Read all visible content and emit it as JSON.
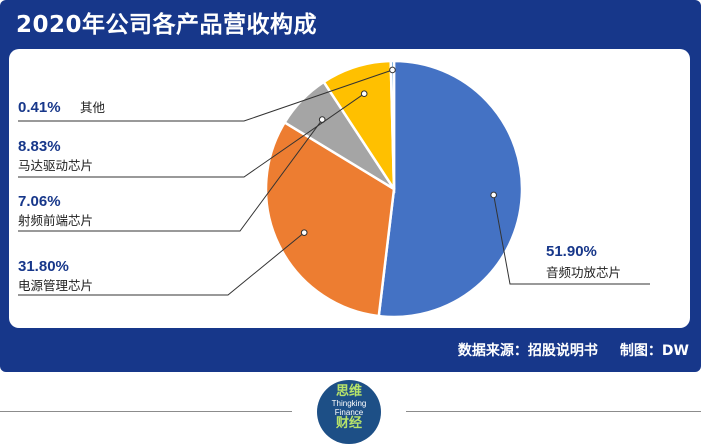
{
  "title": "2020年公司各产品营收构成",
  "footer": {
    "source": "数据来源：招股说明书",
    "credit": "制图：DW"
  },
  "logo": {
    "top_cn": "思维",
    "en1": "Thingking",
    "en2": "Finance",
    "bottom_cn": "财经"
  },
  "chart_data": {
    "type": "pie",
    "title": "2020年公司各产品营收构成",
    "unit": "%",
    "start_angle_deg": 0,
    "direction": "clockwise",
    "slices": [
      {
        "label": "音频功放芯片",
        "value_text": "51.90%",
        "value": 51.9,
        "color": "#4472c4"
      },
      {
        "label": "电源管理芯片",
        "value_text": "31.80%",
        "value": 31.8,
        "color": "#ed7d31"
      },
      {
        "label": "射频前端芯片",
        "value_text": "7.06%",
        "value": 7.06,
        "color": "#a5a5a5"
      },
      {
        "label": "马达驱动芯片",
        "value_text": "8.83%",
        "value": 8.83,
        "color": "#ffc000"
      },
      {
        "label": "其他",
        "value_text": "0.41%",
        "value": 0.41,
        "color": "#5b9bd5"
      }
    ],
    "legend": "none"
  }
}
